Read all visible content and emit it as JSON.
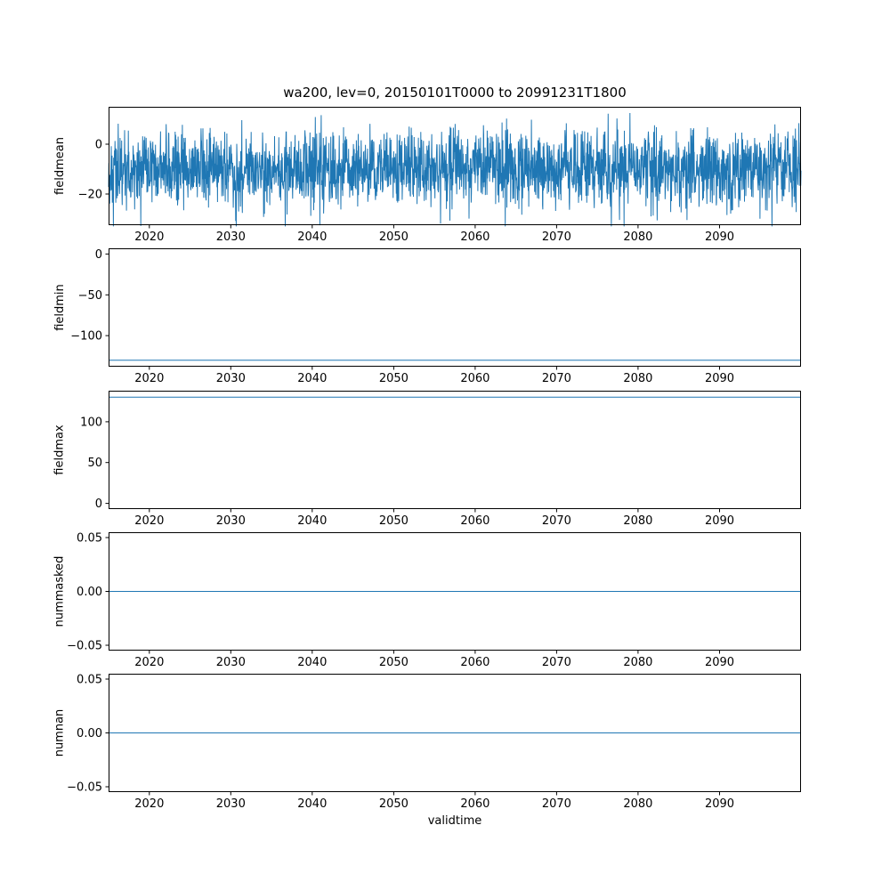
{
  "title": "wa200, lev=0, 20150101T0000 to 20991231T1800",
  "xlabel": "validtime",
  "accent_color": "#1f77b4",
  "chart_data": {
    "type": "line",
    "title": "wa200, lev=0, 20150101T0000 to 20991231T1800",
    "xlabel": "validtime",
    "grid": false,
    "legend": "none",
    "xlim": [
      2015,
      2100
    ],
    "x_ticks": [
      2020,
      2030,
      2040,
      2050,
      2060,
      2070,
      2080,
      2090
    ],
    "x_tick_labels": [
      "2020",
      "2030",
      "2040",
      "2050",
      "2060",
      "2070",
      "2080",
      "2090"
    ],
    "subplots": [
      {
        "ylabel": "fieldmean",
        "ylim": [
          -32.5,
          15
        ],
        "y_ticks": [
          0,
          -20
        ],
        "y_tick_labels": [
          "0",
          "−20"
        ],
        "series": {
          "kind": "gaussian-noise",
          "mean": -10,
          "std": 7.5,
          "min": -33,
          "max": 12.5,
          "n": 2600,
          "seed": 42,
          "description": "dense 6-hourly noise band roughly between -27 and +7, spikes to about +12 and -33"
        }
      },
      {
        "ylabel": "fieldmin",
        "ylim": [
          -138,
          7
        ],
        "y_ticks": [
          0,
          -50,
          -100
        ],
        "y_tick_labels": [
          "0",
          "−50",
          "−100"
        ],
        "series": {
          "kind": "constant",
          "value": -130
        }
      },
      {
        "ylabel": "fieldmax",
        "ylim": [
          -7,
          138
        ],
        "y_ticks": [
          0,
          50,
          100
        ],
        "y_tick_labels": [
          "0",
          "50",
          "100"
        ],
        "series": {
          "kind": "constant",
          "value": 130
        }
      },
      {
        "ylabel": "nummasked",
        "ylim": [
          -0.055,
          0.055
        ],
        "y_ticks": [
          0.05,
          0.0,
          -0.05
        ],
        "y_tick_labels": [
          "0.05",
          "0.00",
          "−0.05"
        ],
        "series": {
          "kind": "constant",
          "value": 0
        }
      },
      {
        "ylabel": "numnan",
        "ylim": [
          -0.055,
          0.055
        ],
        "y_ticks": [
          0.05,
          0.0,
          -0.05
        ],
        "y_tick_labels": [
          "0.05",
          "0.00",
          "−0.05"
        ],
        "series": {
          "kind": "constant",
          "value": 0
        }
      }
    ]
  }
}
